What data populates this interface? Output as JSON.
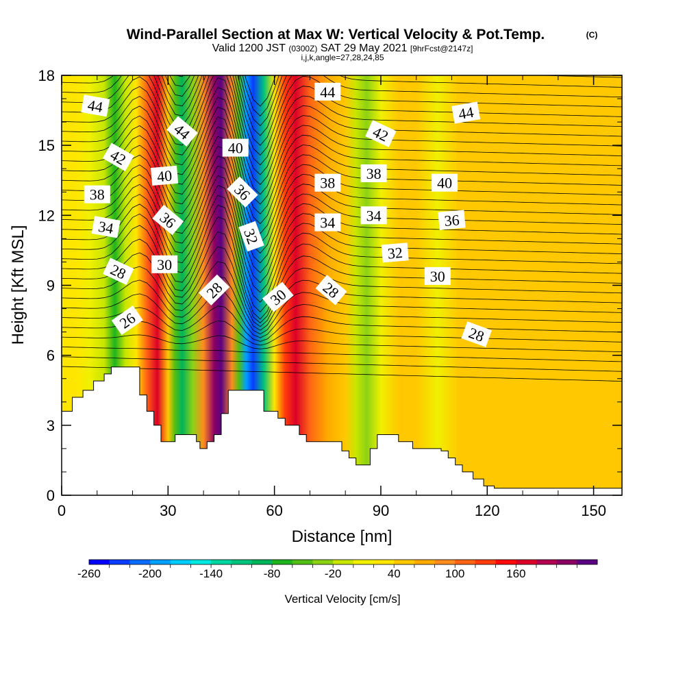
{
  "header": {
    "title": "Wind-Parallel Section at Max W: Vertical Velocity & Pot.Temp.",
    "title_mark": "(C)",
    "valid_prefix": "Valid 1200 JST",
    "valid_utc": "(0300Z)",
    "valid_date": "SAT 29 May 2021",
    "forecast": "[9hrFcst@2147z]",
    "indices": "i,j,k,angle=27,28,24,85"
  },
  "chart_data": {
    "type": "heatmap",
    "xlabel": "Distance [nm]",
    "ylabel": "Height [Kft MSL]",
    "xlim": [
      0,
      158
    ],
    "ylim": [
      0,
      18
    ],
    "x_ticks": [
      0,
      30,
      60,
      90,
      120,
      150
    ],
    "y_ticks": [
      0,
      3,
      6,
      9,
      12,
      15,
      18
    ],
    "grid": false,
    "colorbar": {
      "label": "Vertical Velocity [cm/s]",
      "tick_labels": [
        "-260",
        "-200",
        "-140",
        "-80",
        "-20",
        "40",
        "100",
        "160"
      ],
      "colors": [
        "#0000ff",
        "#0a3cff",
        "#0a6cff",
        "#00a0ff",
        "#00ccff",
        "#00e8e0",
        "#00d7a0",
        "#00c37d",
        "#00b45a",
        "#1eb41e",
        "#50be14",
        "#8cd214",
        "#c8e600",
        "#f0f000",
        "#ffe600",
        "#ffc800",
        "#ffaa00",
        "#ff8c1e",
        "#ff6414",
        "#ff3c0a",
        "#ff0a0a",
        "#dc0028",
        "#b40050",
        "#8c0064",
        "#5a0082"
      ]
    },
    "velocity_bands": [
      {
        "x": 0,
        "w": 2
      },
      {
        "x": 4,
        "w": 4
      },
      {
        "x": 8,
        "w": -10
      },
      {
        "x": 12,
        "w": -40
      },
      {
        "x": 15,
        "w": -90
      },
      {
        "x": 18,
        "w": -40
      },
      {
        "x": 21,
        "w": 5
      },
      {
        "x": 24,
        "w": 80
      },
      {
        "x": 27,
        "w": 130
      },
      {
        "x": 30,
        "w": 10
      },
      {
        "x": 32,
        "w": -80
      },
      {
        "x": 34,
        "w": -110
      },
      {
        "x": 37,
        "w": -60
      },
      {
        "x": 40,
        "w": 60
      },
      {
        "x": 43,
        "w": 160
      },
      {
        "x": 45,
        "w": 180
      },
      {
        "x": 48,
        "w": 60
      },
      {
        "x": 50,
        "w": -80
      },
      {
        "x": 52,
        "w": -200
      },
      {
        "x": 54,
        "w": -230
      },
      {
        "x": 57,
        "w": -120
      },
      {
        "x": 60,
        "w": 0
      },
      {
        "x": 63,
        "w": 90
      },
      {
        "x": 66,
        "w": 120
      },
      {
        "x": 70,
        "w": 80
      },
      {
        "x": 75,
        "w": 40
      },
      {
        "x": 80,
        "w": 10
      },
      {
        "x": 83,
        "w": -40
      },
      {
        "x": 86,
        "w": -60
      },
      {
        "x": 90,
        "w": -20
      },
      {
        "x": 95,
        "w": 20
      },
      {
        "x": 100,
        "w": 10
      },
      {
        "x": 106,
        "w": -10
      },
      {
        "x": 112,
        "w": 10
      },
      {
        "x": 120,
        "w": 20
      },
      {
        "x": 130,
        "w": 25
      },
      {
        "x": 140,
        "w": 20
      },
      {
        "x": 150,
        "w": 25
      },
      {
        "x": 158,
        "w": 20
      }
    ],
    "terrain": {
      "x": [
        0,
        3,
        6,
        9,
        12,
        14,
        17,
        20,
        22,
        24,
        26,
        28,
        30,
        32,
        34,
        36,
        38,
        39,
        41,
        43,
        45,
        47,
        49,
        51,
        53,
        55,
        57,
        59,
        61,
        63,
        65,
        67,
        69,
        71,
        73,
        75,
        77,
        79,
        81,
        83,
        85,
        87,
        89,
        91,
        93,
        95,
        97,
        99,
        101,
        103,
        105,
        107,
        109,
        111,
        113,
        116,
        119,
        122,
        125,
        130,
        135,
        140,
        145,
        150,
        154,
        156,
        158
      ],
      "y": [
        3.6,
        4.2,
        4.5,
        4.9,
        5.2,
        5.5,
        5.5,
        5.5,
        4.3,
        3.6,
        3.0,
        2.3,
        2.3,
        2.6,
        2.6,
        2.6,
        2.3,
        2.0,
        2.3,
        2.6,
        3.5,
        4.5,
        4.5,
        4.5,
        4.5,
        4.5,
        3.6,
        3.6,
        3.3,
        3.0,
        3.0,
        2.6,
        2.3,
        2.3,
        2.3,
        2.3,
        2.3,
        1.9,
        1.6,
        1.3,
        1.3,
        2.0,
        2.6,
        2.6,
        2.6,
        2.3,
        2.3,
        2.0,
        2.0,
        2.0,
        2.0,
        1.9,
        1.6,
        1.3,
        1.0,
        0.7,
        0.4,
        0.3,
        0.3,
        0.3,
        0.3,
        0.3,
        0.3,
        0.3,
        0.3,
        0.3,
        0.3
      ]
    },
    "contour_labels": [
      {
        "text": "44",
        "x": 9.5,
        "y": 16.7,
        "angle": 10
      },
      {
        "text": "44",
        "x": 34,
        "y": 15.6,
        "angle": 40
      },
      {
        "text": "44",
        "x": 75,
        "y": 17.3,
        "angle": 0
      },
      {
        "text": "44",
        "x": 114,
        "y": 16.4,
        "angle": -10
      },
      {
        "text": "42",
        "x": 16,
        "y": 14.5,
        "angle": 30
      },
      {
        "text": "42",
        "x": 90,
        "y": 15.5,
        "angle": 25
      },
      {
        "text": "40",
        "x": 29,
        "y": 13.7,
        "angle": -5
      },
      {
        "text": "40",
        "x": 49,
        "y": 14.9,
        "angle": 0
      },
      {
        "text": "40",
        "x": 108,
        "y": 13.4,
        "angle": 0
      },
      {
        "text": "38",
        "x": 10,
        "y": 12.9,
        "angle": 0
      },
      {
        "text": "38",
        "x": 75,
        "y": 13.4,
        "angle": 0
      },
      {
        "text": "38",
        "x": 88,
        "y": 13.8,
        "angle": 0
      },
      {
        "text": "36",
        "x": 30,
        "y": 11.8,
        "angle": 40
      },
      {
        "text": "36",
        "x": 51,
        "y": 13.0,
        "angle": 45
      },
      {
        "text": "36",
        "x": 110,
        "y": 11.8,
        "angle": -5
      },
      {
        "text": "34",
        "x": 12.5,
        "y": 11.5,
        "angle": 10
      },
      {
        "text": "34",
        "x": 75,
        "y": 11.7,
        "angle": 0
      },
      {
        "text": "34",
        "x": 88,
        "y": 12.0,
        "angle": 0
      },
      {
        "text": "32",
        "x": 53.5,
        "y": 11.1,
        "angle": 70
      },
      {
        "text": "32",
        "x": 94,
        "y": 10.4,
        "angle": -5
      },
      {
        "text": "30",
        "x": 29,
        "y": 9.9,
        "angle": 0
      },
      {
        "text": "30",
        "x": 61,
        "y": 8.5,
        "angle": -40
      },
      {
        "text": "30",
        "x": 106,
        "y": 9.4,
        "angle": 0
      },
      {
        "text": "28",
        "x": 16,
        "y": 9.6,
        "angle": 25
      },
      {
        "text": "28",
        "x": 43,
        "y": 8.8,
        "angle": -45
      },
      {
        "text": "28",
        "x": 76,
        "y": 8.8,
        "angle": 40
      },
      {
        "text": "28",
        "x": 117,
        "y": 6.9,
        "angle": 20
      },
      {
        "text": "26",
        "x": 18.5,
        "y": 7.5,
        "angle": -35
      }
    ]
  }
}
